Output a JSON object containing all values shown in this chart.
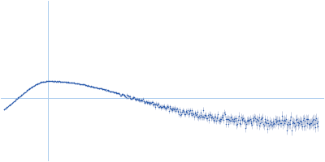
{
  "background_color": "#ffffff",
  "grid_color": "#aaccee",
  "point_color": "#2255aa",
  "error_color": "#99aacc",
  "q_min": 0.005,
  "q_max": 0.5,
  "peak_q": 0.075,
  "peak_val": 0.28,
  "grid_hline": 0.18,
  "grid_vline": 0.075,
  "xlim_min": 0.0,
  "xlim_max": 0.51,
  "ylim_min": -0.22,
  "ylim_max": 0.8,
  "figsize": [
    4.0,
    2.0
  ],
  "dpi": 100,
  "n_points": 500
}
